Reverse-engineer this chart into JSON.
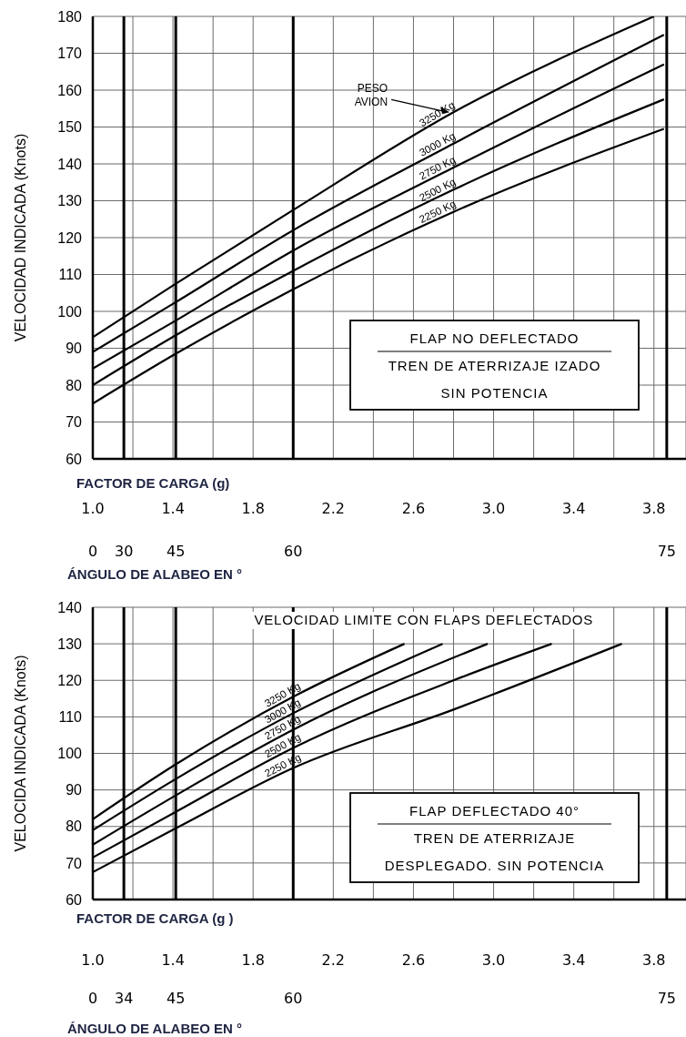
{
  "chart_data": [
    {
      "type": "line",
      "ylabel": "VELOCIDAD INDICADA  (Knots)",
      "xlabel": "FACTOR DE CARGA (g)",
      "x2label": "ÁNGULO DE ALABEO EN °",
      "xlim": [
        1,
        3.96
      ],
      "ylim": [
        60,
        180
      ],
      "yticks": [
        60,
        70,
        80,
        90,
        100,
        110,
        120,
        130,
        140,
        150,
        160,
        170,
        180
      ],
      "xticks": [
        {
          "value": 1,
          "label": "1.0"
        },
        {
          "value": 1.2,
          "label": null
        },
        1.4,
        {
          "value": 1.6,
          "label": null
        },
        1.8,
        {
          "value": 2,
          "label": null
        },
        2.2,
        {
          "value": 2.4,
          "label": null
        },
        2.6,
        {
          "value": 2.8,
          "label": null
        },
        {
          "value": 3,
          "label": "3.0"
        },
        {
          "value": 3.2,
          "label": null
        },
        3.4,
        {
          "value": 3.6,
          "label": null
        },
        3.8
      ],
      "grid": true,
      "ref_lines": [
        {
          "axis": "x",
          "value": 1.155,
          "color": "#000000"
        },
        {
          "axis": "x",
          "value": 1.414,
          "color": "#000000"
        },
        {
          "axis": "x",
          "value": 2,
          "color": "#000000"
        },
        {
          "axis": "x",
          "value": 3.864,
          "color": "#000000"
        }
      ],
      "annotations": [
        {
          "text": "PESO AVION",
          "x": 2.78,
          "y": 154
        },
        "0",
        "30",
        "45",
        "60",
        "75",
        "FLAP NO DEFLECTADO",
        "TREN DE ATERRIZAJE IZADO",
        "SIN POTENCIA"
      ],
      "series": [
        {
          "name": "3250 Kg",
          "color": "#000000",
          "x": [
            1,
            1.414,
            2,
            2.8,
            3.8
          ],
          "values": [
            93,
            107.5,
            127.5,
            154,
            180
          ]
        },
        {
          "name": "3000 Kg",
          "color": "#000000",
          "x": [
            1,
            1.414,
            2,
            2.8,
            3.85
          ],
          "values": [
            89,
            102.5,
            122,
            145.5,
            175
          ]
        },
        {
          "name": "2750 Kg",
          "color": "#000000",
          "x": [
            1,
            1.414,
            2,
            2.8,
            3.85
          ],
          "values": [
            84.5,
            97.5,
            116.5,
            139,
            167
          ]
        },
        {
          "name": "2500 Kg",
          "color": "#000000",
          "x": [
            1,
            1.414,
            2,
            2.8,
            3.85
          ],
          "values": [
            80,
            93.5,
            111,
            133,
            157.5
          ]
        },
        {
          "name": "2250 Kg",
          "color": "#000000",
          "x": [
            1,
            1.414,
            2,
            2.8,
            3.85
          ],
          "values": [
            75,
            88.5,
            106,
            127,
            149.5
          ]
        }
      ]
    },
    {
      "type": "line",
      "ylabel": "VELOCIDA INDICADA  (Knots)",
      "xlabel": "FACTOR DE CARGA (g )",
      "x2label": "ÁNGULO DE ALABEO EN °",
      "xlim": [
        1,
        3.96
      ],
      "ylim": [
        60,
        140
      ],
      "yticks": [
        60,
        70,
        80,
        90,
        100,
        110,
        120,
        130,
        140
      ],
      "xticks": [
        {
          "value": 1,
          "label": "1.0"
        },
        {
          "value": 1.2,
          "label": null
        },
        1.4,
        {
          "value": 1.6,
          "label": null
        },
        1.8,
        {
          "value": 2,
          "label": null
        },
        2.2,
        {
          "value": 2.4,
          "label": null
        },
        2.6,
        {
          "value": 2.8,
          "label": null
        },
        {
          "value": 3,
          "label": "3.0"
        },
        {
          "value": 3.2,
          "label": null
        },
        3.4,
        {
          "value": 3.6,
          "label": null
        },
        3.8
      ],
      "grid": true,
      "ref_lines": [
        {
          "axis": "x",
          "value": 1.155,
          "color": "#000000"
        },
        {
          "axis": "x",
          "value": 1.414,
          "color": "#000000"
        },
        {
          "axis": "x",
          "value": 2,
          "color": "#000000"
        },
        {
          "axis": "x",
          "value": 3.864,
          "color": "#000000"
        }
      ],
      "annotations": [
        "VELOCIDAD LIMITE CON FLAPS DEFLECTADOS",
        "0",
        "34",
        "45",
        "60",
        "75",
        "FLAP DEFLECTADO 40°",
        "TREN DE ATERRIZAJE",
        "DESPLEGADO. SIN POTENCIA"
      ],
      "series": [
        {
          "name": "3250 Kg",
          "color": "#000000",
          "x": [
            1,
            1.414,
            2,
            2.555
          ],
          "values": [
            82,
            97,
            115.5,
            130
          ]
        },
        {
          "name": "3000 Kg",
          "color": "#000000",
          "x": [
            1,
            1.414,
            2,
            2.745
          ],
          "values": [
            79,
            93,
            111,
            130
          ]
        },
        {
          "name": "2750 Kg",
          "color": "#000000",
          "x": [
            1,
            1.414,
            2,
            2.97
          ],
          "values": [
            75,
            88.5,
            106.5,
            130
          ]
        },
        {
          "name": "2500 Kg",
          "color": "#000000",
          "x": [
            1,
            1.414,
            2,
            2.8,
            3.29
          ],
          "values": [
            71.5,
            84,
            101.5,
            120,
            130
          ]
        },
        {
          "name": "2250 Kg",
          "color": "#000000",
          "x": [
            1,
            1.414,
            2,
            2.8,
            3.64
          ],
          "values": [
            67.5,
            79.5,
            96,
            112,
            130
          ]
        }
      ]
    }
  ]
}
